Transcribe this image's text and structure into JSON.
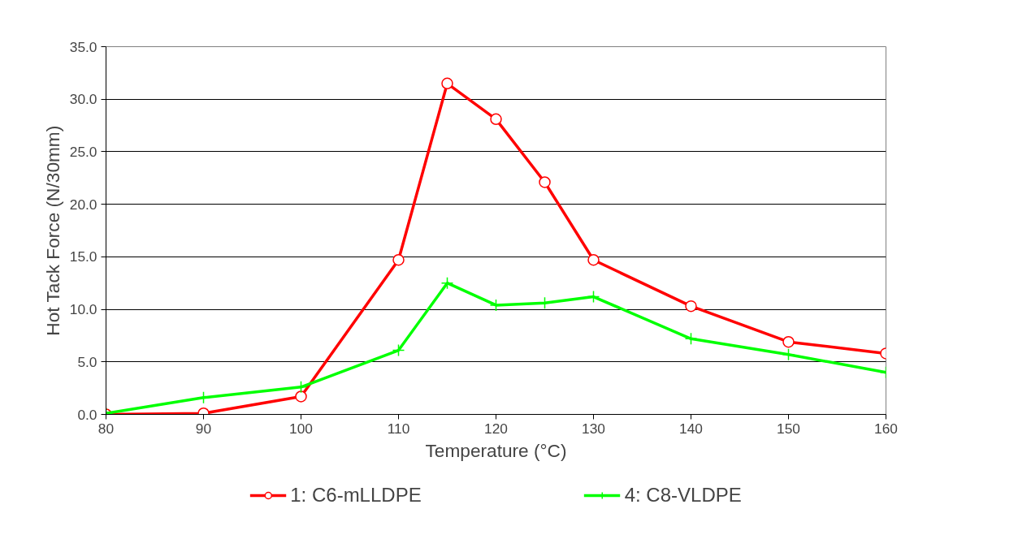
{
  "chart_data": {
    "type": "line",
    "xlabel": "Temperature (°C)",
    "ylabel": "Hot Tack Force (N/30mm)",
    "xlim": [
      80,
      160
    ],
    "xticks": [
      80,
      90,
      100,
      110,
      120,
      130,
      140,
      150,
      160
    ],
    "ylim": [
      0,
      35
    ],
    "yticks": [
      {
        "value": 0,
        "label": "0.0"
      },
      {
        "value": 5,
        "label": "5.0"
      },
      {
        "value": 10,
        "label": "10.0"
      },
      {
        "value": 15,
        "label": "15.0"
      },
      {
        "value": 20,
        "label": "20.0"
      },
      {
        "value": 25,
        "label": "25.0"
      },
      {
        "value": 30,
        "label": "30.0"
      },
      {
        "value": 35,
        "label": "35.0"
      }
    ],
    "grid": "y",
    "legend": "bottom",
    "line_style": "solid",
    "series": [
      {
        "name": "1: C6-mLLDPE",
        "color": "#ff0000",
        "marker": "circle",
        "x": [
          80,
          90,
          100,
          110,
          115,
          120,
          125,
          130,
          140,
          150,
          160
        ],
        "values": [
          0.0,
          0.1,
          1.7,
          14.7,
          31.5,
          28.1,
          22.1,
          14.7,
          10.3,
          6.9,
          5.8
        ]
      },
      {
        "name": "4: C8-VLDPE",
        "color": "#00ff00",
        "marker": "cross",
        "x": [
          80,
          90,
          100,
          110,
          115,
          120,
          125,
          130,
          140,
          150,
          160
        ],
        "values": [
          0.1,
          1.6,
          2.6,
          6.1,
          12.5,
          10.4,
          10.6,
          11.2,
          7.2,
          5.7,
          4.0
        ]
      }
    ]
  }
}
